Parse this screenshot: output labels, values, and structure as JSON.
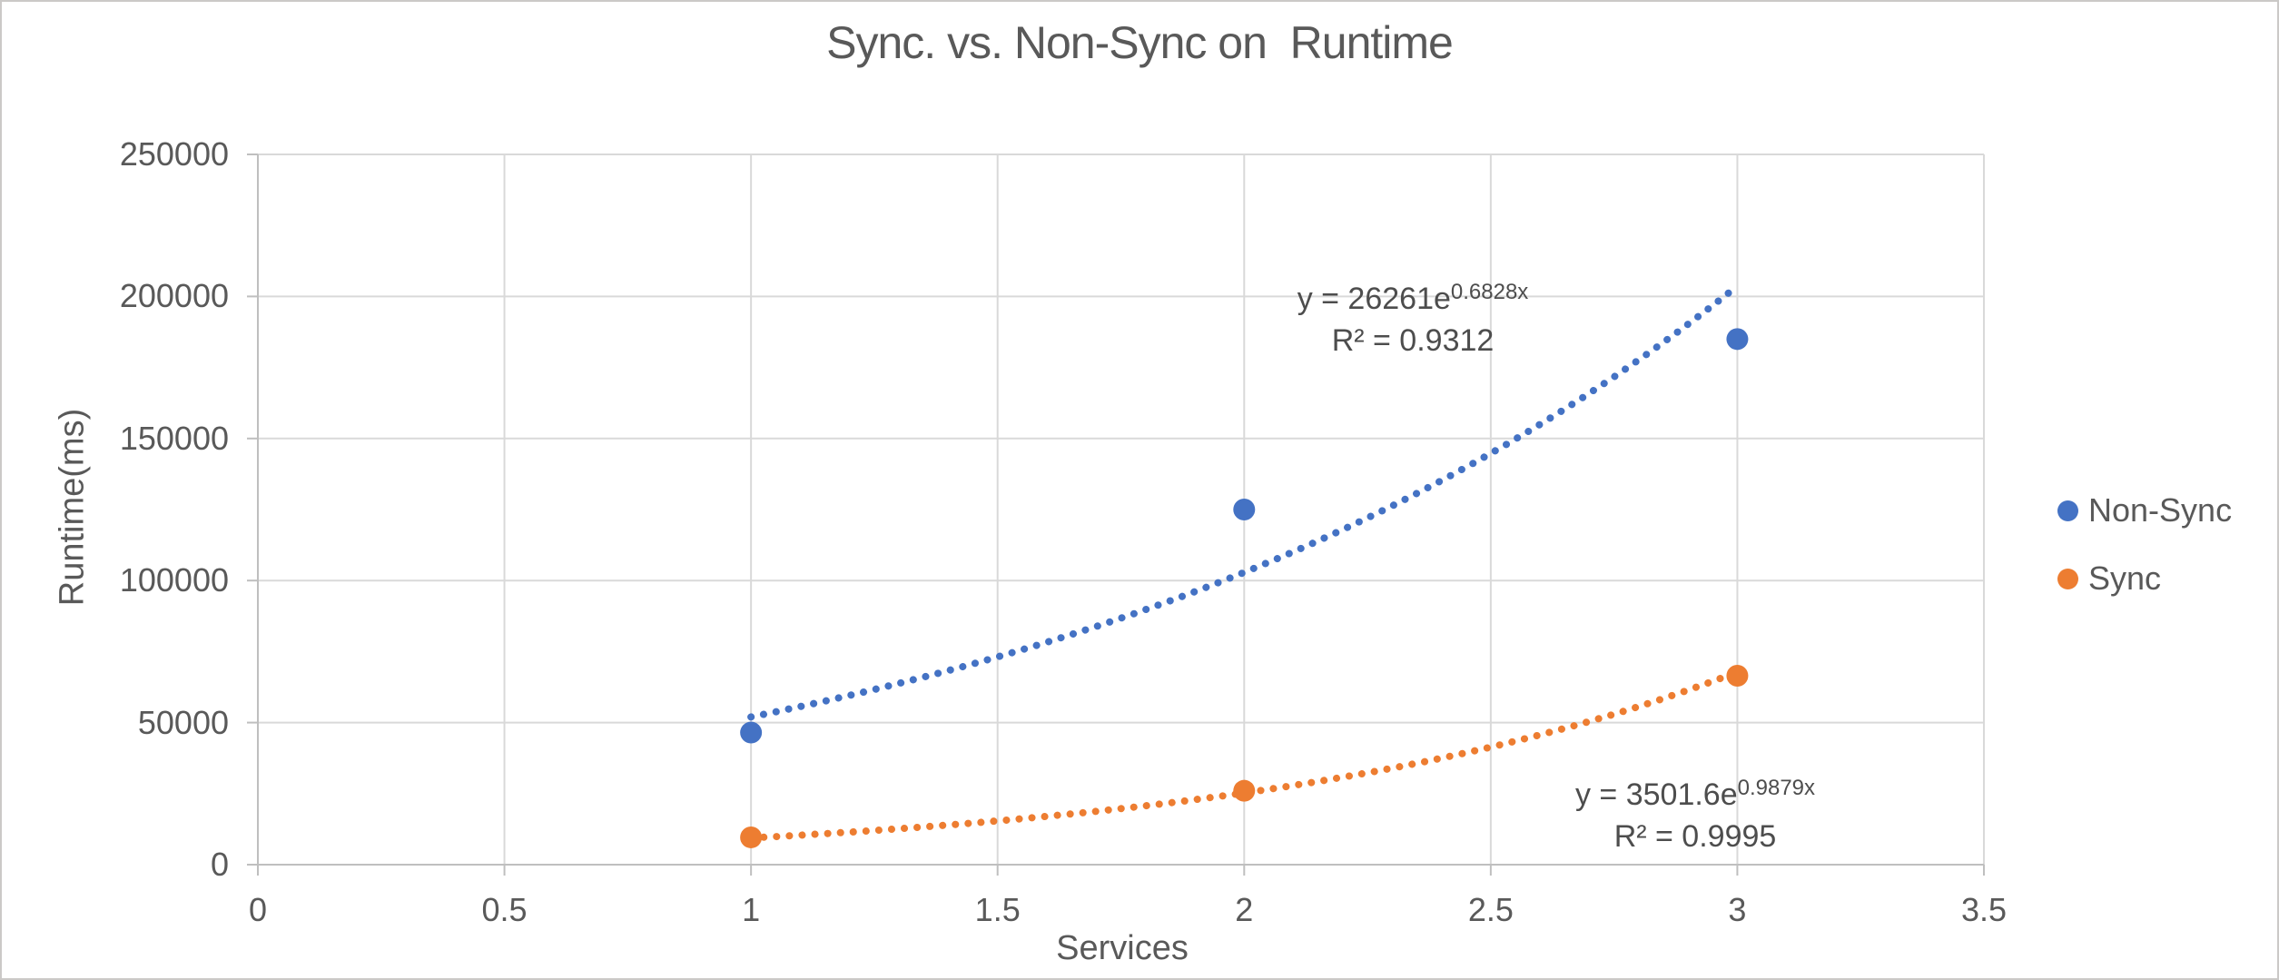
{
  "chart_data": {
    "type": "scatter",
    "title": "Sync. vs. Non-Sync on  Runtime",
    "xlabel": "Services",
    "ylabel": "Runtime(ms)",
    "xlim": [
      0,
      3.5
    ],
    "ylim": [
      0,
      250000
    ],
    "xticks": [
      0,
      0.5,
      1,
      1.5,
      2,
      2.5,
      3,
      3.5
    ],
    "yticks": [
      0,
      50000,
      100000,
      150000,
      200000,
      250000
    ],
    "grid": true,
    "legend_position": "right",
    "series": [
      {
        "name": "Non-Sync",
        "color": "#4472C4",
        "x": [
          1,
          2,
          3
        ],
        "y": [
          46500,
          125000,
          185000
        ],
        "trendline": {
          "type": "exponential",
          "a": 26261,
          "b": 0.6828,
          "x_range": [
            1,
            3
          ],
          "equation_base": "y = 26261e",
          "equation_exponent": "0.6828x",
          "r_squared": "R² = 0.9312"
        }
      },
      {
        "name": "Sync",
        "color": "#ED7D31",
        "x": [
          1,
          2,
          3
        ],
        "y": [
          9600,
          26000,
          66500
        ],
        "trendline": {
          "type": "exponential",
          "a": 3501.6,
          "b": 0.9879,
          "x_range": [
            1,
            3
          ],
          "equation_base": "y = 3501.6e",
          "equation_exponent": "0.9879x",
          "r_squared": "R² = 0.9995"
        }
      }
    ]
  },
  "colors": {
    "text": "#595959",
    "equation_text": "#4d4d4d",
    "gridline": "#D9D9D9",
    "axis_line": "#BFBFBF",
    "background": "#FFFFFF",
    "border": "#CBC9C7"
  }
}
